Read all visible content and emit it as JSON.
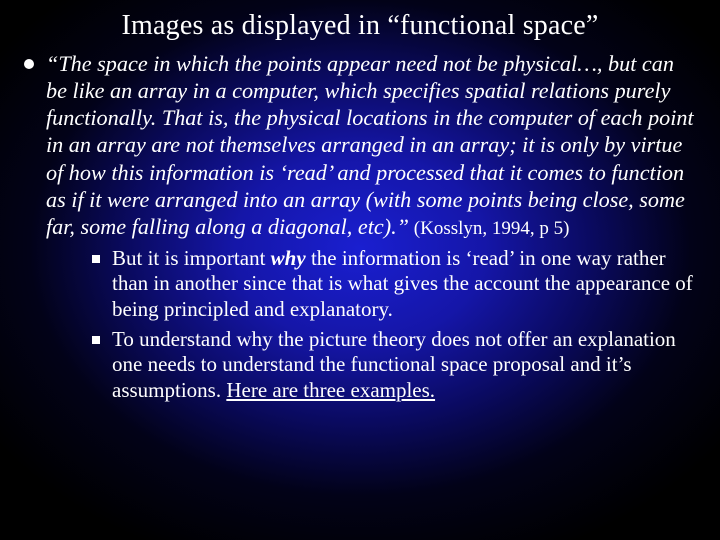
{
  "title": "Images as displayed in “functional space”",
  "main": {
    "quote_html": "“The space in which the points appear need not be physical…, but can be like an array in a computer, which specifies spatial relations purely functionally.  That is, the physical locations in the computer of each point in an array are not themselves arranged in an array; it is only by virtue of how this information is ‘read’ and processed that it comes to function as if it were arranged into an array (with some points being close, some far, some falling along a diagonal, etc).”",
    "cite": " (Kosslyn, 1994, p 5)"
  },
  "sub": [
    {
      "pre": "But it is important ",
      "emph": "why",
      "post": " the information is ‘read’ in one way rather than in another since that is what gives the account the appearance of being principled and explanatory."
    },
    {
      "plain": "To understand why the picture theory does not offer an explanation one needs to understand the functional space proposal and it’s assumptions.  ",
      "tail": "Here are three examples."
    }
  ],
  "style": {
    "title_fontsize": 28,
    "body_fontsize": 22,
    "sub_fontsize": 21,
    "text_color": "#ffffff",
    "bg_gradient_center": "#1a1fd0",
    "bg_gradient_edge": "#000000",
    "font_family": "Times New Roman"
  }
}
